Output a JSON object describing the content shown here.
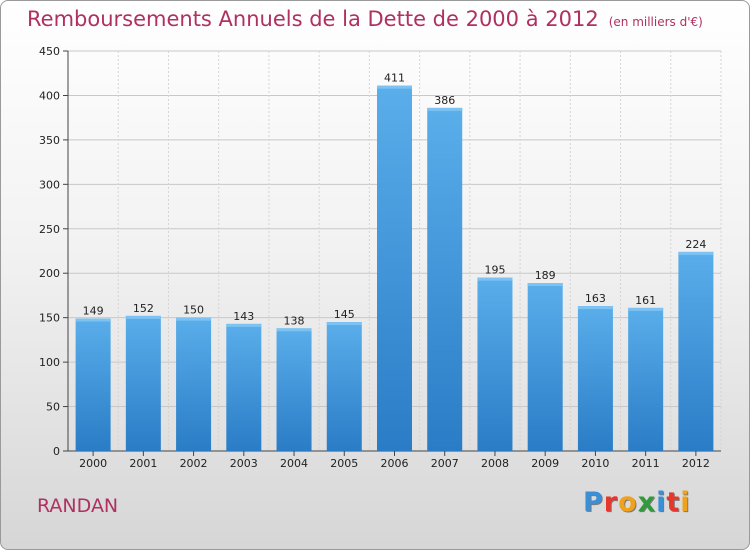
{
  "title": "Remboursements Annuels de la Dette de 2000 à 2012",
  "unit_note": "(en milliers d'€)",
  "city": "RANDAN",
  "logo": {
    "text": "Proxiti",
    "letter_colors": [
      "#3a8fd6",
      "#e8362b",
      "#f0a21c",
      "#2f9b3a",
      "#3a8fd6",
      "#e8362b",
      "#f0a21c"
    ]
  },
  "colors": {
    "bar": "#4a9de0",
    "bar_dark": "#2a7cc6",
    "title": "#b03060"
  },
  "chart_data": {
    "type": "bar",
    "title": "Remboursements Annuels de la Dette de 2000 à 2012",
    "categories": [
      "2000",
      "2001",
      "2002",
      "2003",
      "2004",
      "2005",
      "2006",
      "2007",
      "2008",
      "2009",
      "2010",
      "2011",
      "2012"
    ],
    "values": [
      149,
      152,
      150,
      143,
      138,
      145,
      411,
      386,
      195,
      189,
      163,
      161,
      224
    ],
    "ylim": [
      0,
      450
    ],
    "yticks": [
      0,
      50,
      100,
      150,
      200,
      250,
      300,
      350,
      400,
      450
    ],
    "grid": true,
    "xlabel": "",
    "ylabel": ""
  }
}
